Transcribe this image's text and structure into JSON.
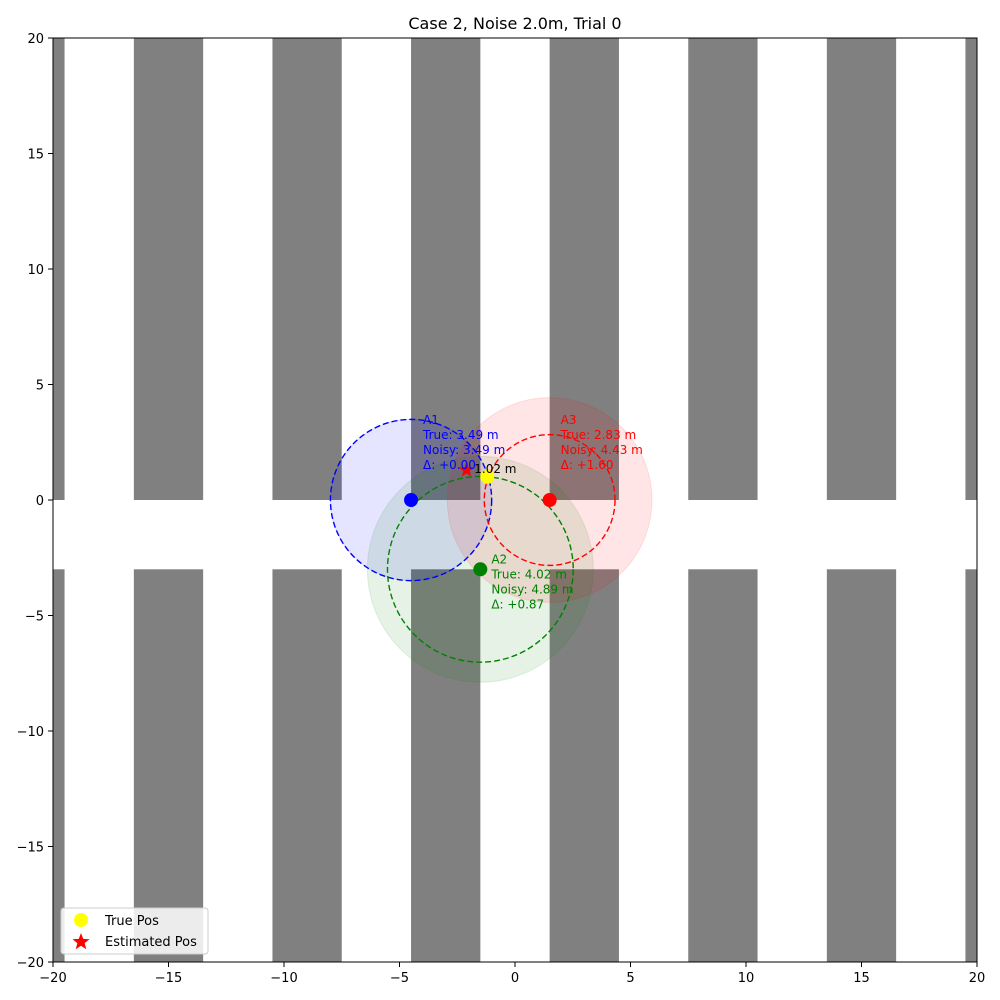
{
  "chart_data": {
    "type": "scatter",
    "title": "Case 2, Noise 2.0m, Trial 0",
    "xlabel": "",
    "ylabel": "",
    "xlim": [
      -20,
      20
    ],
    "ylim": [
      -20,
      20
    ],
    "xticks": [
      -20,
      -15,
      -10,
      -5,
      0,
      5,
      10,
      15,
      20
    ],
    "yticks": [
      -20,
      -15,
      -10,
      -5,
      0,
      5,
      10,
      15,
      20
    ],
    "tick_labels_x": [
      "−20",
      "−15",
      "−10",
      "−5",
      "0",
      "5",
      "10",
      "15",
      "20"
    ],
    "tick_labels_y": [
      "−20",
      "−15",
      "−10",
      "−5",
      "0",
      "5",
      "10",
      "15",
      "20"
    ],
    "grid": false,
    "legend_position": "bottom-left",
    "background_blocks": {
      "color": "#808080",
      "upper": [
        {
          "x0": -20,
          "x1": -19.5,
          "y0": 0,
          "y1": 20
        },
        {
          "x0": -16.5,
          "x1": -13.5,
          "y0": 0,
          "y1": 20
        },
        {
          "x0": -10.5,
          "x1": -7.5,
          "y0": 0,
          "y1": 20
        },
        {
          "x0": -4.5,
          "x1": -1.5,
          "y0": 0,
          "y1": 20
        },
        {
          "x0": 1.5,
          "x1": 4.5,
          "y0": 0,
          "y1": 20
        },
        {
          "x0": 7.5,
          "x1": 10.5,
          "y0": 0,
          "y1": 20
        },
        {
          "x0": 13.5,
          "x1": 16.5,
          "y0": 0,
          "y1": 20
        },
        {
          "x0": 19.5,
          "x1": 20,
          "y0": 0,
          "y1": 20
        }
      ],
      "lower": [
        {
          "x0": -20,
          "x1": -19.5,
          "y0": -20,
          "y1": -3
        },
        {
          "x0": -16.5,
          "x1": -13.5,
          "y0": -20,
          "y1": -3
        },
        {
          "x0": -10.5,
          "x1": -7.5,
          "y0": -20,
          "y1": -3
        },
        {
          "x0": -4.5,
          "x1": -1.5,
          "y0": -20,
          "y1": -3
        },
        {
          "x0": 1.5,
          "x1": 4.5,
          "y0": -20,
          "y1": -3
        },
        {
          "x0": 7.5,
          "x1": 10.5,
          "y0": -20,
          "y1": -3
        },
        {
          "x0": 13.5,
          "x1": 16.5,
          "y0": -20,
          "y1": -3
        },
        {
          "x0": 19.5,
          "x1": 20,
          "y0": -20,
          "y1": -3
        }
      ]
    },
    "anchors": [
      {
        "id": "A1",
        "x": -4.5,
        "y": 0,
        "color": "#0000ff",
        "true_range": 3.49,
        "noisy_range": 3.49,
        "label_lines": [
          "A1",
          "True: 3.49 m",
          "Noisy: 3.49 m",
          "Δ: +0.00"
        ]
      },
      {
        "id": "A2",
        "x": -1.5,
        "y": -3,
        "color": "#008000",
        "true_range": 4.02,
        "noisy_range": 4.89,
        "label_lines": [
          "A2",
          "True: 4.02 m",
          "Noisy: 4.89 m",
          "Δ: +0.87"
        ]
      },
      {
        "id": "A3",
        "x": 1.5,
        "y": 0,
        "color": "#ff0000",
        "true_range": 2.83,
        "noisy_range": 4.43,
        "label_lines": [
          "A3",
          "True: 2.83 m",
          "Noisy: 4.43 m",
          "Δ: +1.60"
        ]
      }
    ],
    "true_pos": {
      "x": -1.2,
      "y": 1.0,
      "color": "#ffff00"
    },
    "estimated_pos": {
      "x": -2.1,
      "y": 1.3,
      "color": "#ff0000"
    },
    "error_label": "1.02 m",
    "legend": [
      {
        "label": "True Pos",
        "marker": "circle",
        "color": "#ffff00"
      },
      {
        "label": "Estimated Pos",
        "marker": "star",
        "color": "#ff0000"
      }
    ]
  }
}
